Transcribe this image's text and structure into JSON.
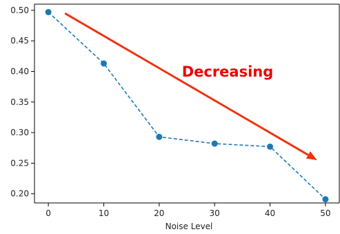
{
  "chart_data": {
    "type": "line",
    "x": [
      0,
      10,
      20,
      30,
      40,
      50
    ],
    "series": [
      {
        "values": [
          0.497,
          0.413,
          0.293,
          0.282,
          0.277,
          0.191
        ]
      }
    ],
    "xlabel": "Noise Level",
    "ylabel": "",
    "x_ticks": [
      "0",
      "10",
      "20",
      "30",
      "40",
      "50"
    ],
    "y_ticks": [
      "0.20",
      "0.25",
      "0.30",
      "0.35",
      "0.40",
      "0.45",
      "0.50"
    ],
    "xlim": [
      -2.5,
      52.5
    ],
    "ylim": [
      0.185,
      0.51
    ],
    "grid": false,
    "line_style": "dashed",
    "marker": "circle",
    "colors": {
      "series": "#1f77b4",
      "annotation": "#ee0000",
      "arrow": "#ee3311"
    },
    "annotations": [
      {
        "text": "Decreasing",
        "arrow_from": [
          3.0,
          0.495
        ],
        "arrow_to": [
          48.5,
          0.255
        ]
      }
    ]
  }
}
